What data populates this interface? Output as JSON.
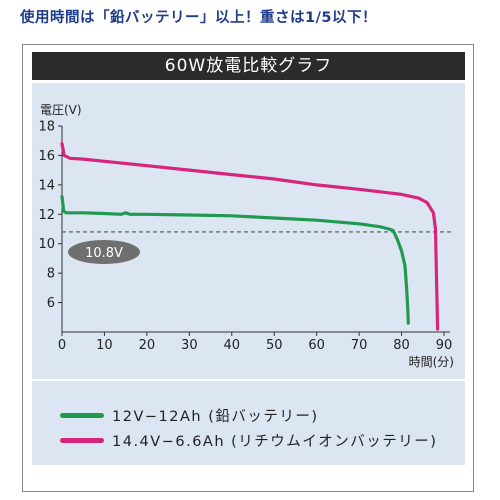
{
  "headline": "使用時間は「鉛バッテリー」以上！重さは1/5以下！",
  "chart_data": {
    "type": "line",
    "title": "60W放電比較グラフ",
    "xlabel": "時間(分)",
    "ylabel": "電圧(V)",
    "xlim": [
      0,
      90
    ],
    "ylim": [
      4,
      18
    ],
    "xticks": [
      0,
      10,
      20,
      30,
      40,
      50,
      60,
      70,
      80,
      90
    ],
    "yticks": [
      6,
      8,
      10,
      12,
      14,
      16,
      18
    ],
    "threshold": {
      "value": 10.8,
      "label": "10.8V"
    },
    "grid": false,
    "legend_position": "bottom",
    "series": [
      {
        "name": "12V−12Ah (鉛バッテリー)",
        "color": "#1f9a4f",
        "points": [
          [
            0,
            13.2
          ],
          [
            0.4,
            12.2
          ],
          [
            1,
            12.1
          ],
          [
            5,
            12.1
          ],
          [
            10,
            12.05
          ],
          [
            14,
            12.0
          ],
          [
            15,
            12.1
          ],
          [
            16,
            12.0
          ],
          [
            20,
            12.0
          ],
          [
            30,
            11.95
          ],
          [
            40,
            11.9
          ],
          [
            50,
            11.75
          ],
          [
            60,
            11.6
          ],
          [
            70,
            11.35
          ],
          [
            75,
            11.15
          ],
          [
            77,
            11.0
          ],
          [
            78,
            10.9
          ],
          [
            79,
            10.3
          ],
          [
            80,
            9.5
          ],
          [
            80.8,
            8.5
          ],
          [
            81.2,
            7.0
          ],
          [
            81.5,
            5.4
          ],
          [
            81.6,
            4.6
          ]
        ]
      },
      {
        "name": "14.4V−6.6Ah (リチウムイオンバッテリー)",
        "color": "#d6257a",
        "points": [
          [
            0,
            16.8
          ],
          [
            0.5,
            16.0
          ],
          [
            2,
            15.8
          ],
          [
            5,
            15.75
          ],
          [
            10,
            15.6
          ],
          [
            20,
            15.3
          ],
          [
            30,
            15.0
          ],
          [
            40,
            14.7
          ],
          [
            50,
            14.4
          ],
          [
            60,
            14.0
          ],
          [
            70,
            13.7
          ],
          [
            80,
            13.35
          ],
          [
            84,
            13.1
          ],
          [
            86,
            12.8
          ],
          [
            87.5,
            12.1
          ],
          [
            88,
            11.0
          ],
          [
            88.2,
            8.0
          ],
          [
            88.4,
            5.5
          ],
          [
            88.5,
            4.2
          ]
        ]
      }
    ]
  }
}
